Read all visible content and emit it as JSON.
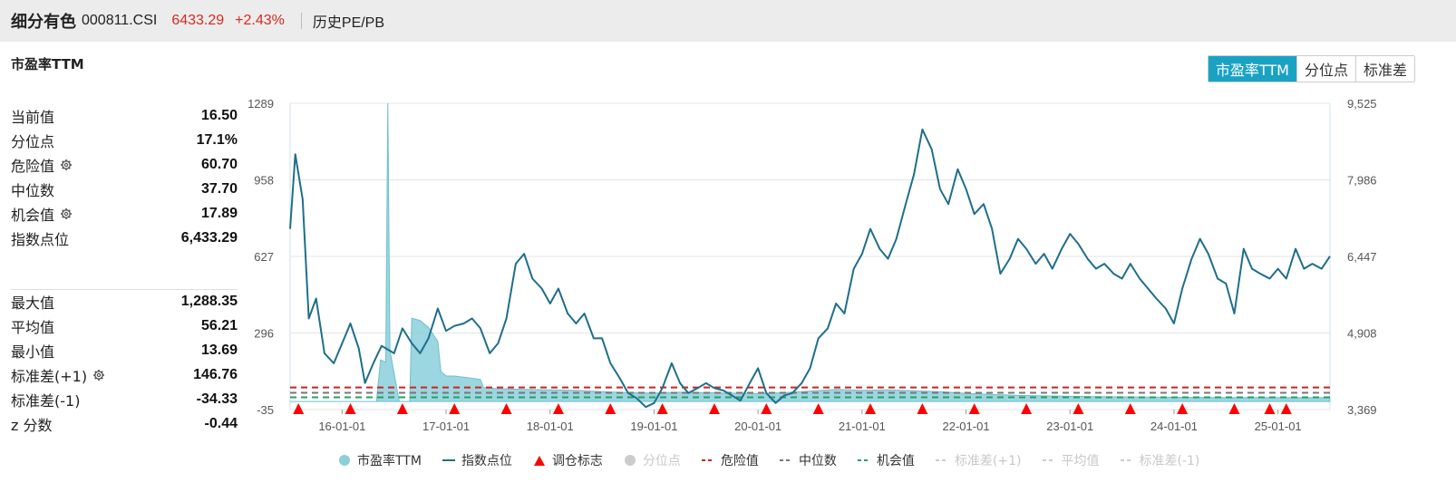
{
  "header": {
    "name": "细分有色",
    "code": "000811.CSI",
    "price": "6433.29",
    "change": "+2.43%",
    "link": "历史PE/PB"
  },
  "panel": {
    "title": "市盈率TTM",
    "stats_top": [
      {
        "label": "当前值",
        "value": "16.50",
        "gear": false
      },
      {
        "label": "分位点",
        "value": "17.1%",
        "gear": false
      },
      {
        "label": "危险值",
        "value": "60.70",
        "gear": true
      },
      {
        "label": "中位数",
        "value": "37.70",
        "gear": false
      },
      {
        "label": "机会值",
        "value": "17.89",
        "gear": true
      },
      {
        "label": "指数点位",
        "value": "6,433.29",
        "gear": false
      }
    ],
    "stats_bottom": [
      {
        "label": "最大值",
        "value": "1,288.35",
        "gear": false
      },
      {
        "label": "平均值",
        "value": "56.21",
        "gear": false
      },
      {
        "label": "最小值",
        "value": "13.69",
        "gear": false
      },
      {
        "label": "标准差(+1)",
        "value": "146.76",
        "gear": true
      },
      {
        "label": "标准差(-1)",
        "value": "-34.33",
        "gear": false
      },
      {
        "label": "z 分数",
        "value": "-0.44",
        "gear": false
      }
    ]
  },
  "tabs": [
    {
      "label": "市盈率TTM",
      "active": true
    },
    {
      "label": "分位点",
      "active": false
    },
    {
      "label": "标准差",
      "active": false
    }
  ],
  "legend": [
    {
      "label": "市盈率TTM",
      "type": "dot",
      "color": "#8bcfda",
      "dim": false
    },
    {
      "label": "指数点位",
      "type": "line",
      "color": "#1f6e8c",
      "dim": false
    },
    {
      "label": "调仓标志",
      "type": "triangle",
      "color": "#ff0000",
      "dim": false
    },
    {
      "label": "分位点",
      "type": "dot",
      "color": "#cccccc",
      "dim": true
    },
    {
      "label": "危险值",
      "type": "dash",
      "color": "#d22020",
      "dim": false
    },
    {
      "label": "中位数",
      "type": "dash",
      "color": "#777777",
      "dim": false
    },
    {
      "label": "机会值",
      "type": "dash",
      "color": "#22a064",
      "dim": false
    },
    {
      "label": "标准差(+1)",
      "type": "dash",
      "color": "#cccccc",
      "dim": true
    },
    {
      "label": "平均值",
      "type": "dash",
      "color": "#cccccc",
      "dim": true
    },
    {
      "label": "标准差(-1)",
      "type": "dash",
      "color": "#cccccc",
      "dim": true
    }
  ],
  "chart_data": {
    "type": "line",
    "x_ticks": [
      "16-01-01",
      "17-01-01",
      "18-01-01",
      "19-01-01",
      "20-01-01",
      "21-01-01",
      "22-01-01",
      "23-01-01",
      "24-01-01",
      "25-01-01"
    ],
    "y_left": {
      "ticks": [
        "1289",
        "958",
        "627",
        "296",
        "-35"
      ],
      "min": -35,
      "max": 1289
    },
    "y_right": {
      "ticks": [
        "9,525",
        "7,986",
        "6,447",
        "4,908",
        "3,369"
      ],
      "min": 3369,
      "max": 9525
    },
    "x_range": [
      2015.5,
      2025.5
    ],
    "reference_lines": {
      "danger": 60.7,
      "median": 37.7,
      "opportunity": 17.89
    },
    "series": [
      {
        "name": "指数点位",
        "points": [
          [
            2015.5,
            7000
          ],
          [
            2015.55,
            8500
          ],
          [
            2015.62,
            7600
          ],
          [
            2015.68,
            5200
          ],
          [
            2015.75,
            5600
          ],
          [
            2015.83,
            4500
          ],
          [
            2015.92,
            4300
          ],
          [
            2016.0,
            4700
          ],
          [
            2016.08,
            5100
          ],
          [
            2016.16,
            4600
          ],
          [
            2016.22,
            3900
          ],
          [
            2016.3,
            4300
          ],
          [
            2016.38,
            4650
          ],
          [
            2016.5,
            4500
          ],
          [
            2016.58,
            5000
          ],
          [
            2016.67,
            4700
          ],
          [
            2016.75,
            4500
          ],
          [
            2016.83,
            4800
          ],
          [
            2016.92,
            5400
          ],
          [
            2017.0,
            4950
          ],
          [
            2017.08,
            5050
          ],
          [
            2017.17,
            5100
          ],
          [
            2017.25,
            5200
          ],
          [
            2017.33,
            5000
          ],
          [
            2017.42,
            4500
          ],
          [
            2017.5,
            4700
          ],
          [
            2017.58,
            5200
          ],
          [
            2017.67,
            6300
          ],
          [
            2017.75,
            6500
          ],
          [
            2017.83,
            6000
          ],
          [
            2017.92,
            5800
          ],
          [
            2018.0,
            5500
          ],
          [
            2018.08,
            5800
          ],
          [
            2018.17,
            5300
          ],
          [
            2018.25,
            5100
          ],
          [
            2018.33,
            5300
          ],
          [
            2018.42,
            4800
          ],
          [
            2018.5,
            4800
          ],
          [
            2018.58,
            4300
          ],
          [
            2018.67,
            4000
          ],
          [
            2018.75,
            3700
          ],
          [
            2018.83,
            3600
          ],
          [
            2018.92,
            3420
          ],
          [
            2019.0,
            3500
          ],
          [
            2019.08,
            3800
          ],
          [
            2019.17,
            4300
          ],
          [
            2019.25,
            3900
          ],
          [
            2019.33,
            3700
          ],
          [
            2019.42,
            3800
          ],
          [
            2019.5,
            3900
          ],
          [
            2019.58,
            3800
          ],
          [
            2019.67,
            3750
          ],
          [
            2019.75,
            3650
          ],
          [
            2019.83,
            3550
          ],
          [
            2019.92,
            3900
          ],
          [
            2020.0,
            4200
          ],
          [
            2020.08,
            3700
          ],
          [
            2020.17,
            3500
          ],
          [
            2020.25,
            3650
          ],
          [
            2020.33,
            3700
          ],
          [
            2020.42,
            3900
          ],
          [
            2020.5,
            4200
          ],
          [
            2020.58,
            4800
          ],
          [
            2020.67,
            5000
          ],
          [
            2020.75,
            5500
          ],
          [
            2020.83,
            5300
          ],
          [
            2020.92,
            6200
          ],
          [
            2021.0,
            6500
          ],
          [
            2021.08,
            7000
          ],
          [
            2021.17,
            6600
          ],
          [
            2021.25,
            6400
          ],
          [
            2021.33,
            6800
          ],
          [
            2021.42,
            7500
          ],
          [
            2021.5,
            8100
          ],
          [
            2021.58,
            9000
          ],
          [
            2021.67,
            8600
          ],
          [
            2021.75,
            7800
          ],
          [
            2021.83,
            7500
          ],
          [
            2021.92,
            8200
          ],
          [
            2022.0,
            7800
          ],
          [
            2022.08,
            7300
          ],
          [
            2022.17,
            7500
          ],
          [
            2022.25,
            7000
          ],
          [
            2022.33,
            6100
          ],
          [
            2022.42,
            6400
          ],
          [
            2022.5,
            6800
          ],
          [
            2022.58,
            6600
          ],
          [
            2022.67,
            6300
          ],
          [
            2022.75,
            6500
          ],
          [
            2022.83,
            6200
          ],
          [
            2022.92,
            6600
          ],
          [
            2023.0,
            6900
          ],
          [
            2023.08,
            6700
          ],
          [
            2023.17,
            6400
          ],
          [
            2023.25,
            6200
          ],
          [
            2023.33,
            6300
          ],
          [
            2023.42,
            6100
          ],
          [
            2023.5,
            6000
          ],
          [
            2023.58,
            6300
          ],
          [
            2023.67,
            6000
          ],
          [
            2023.75,
            5800
          ],
          [
            2023.83,
            5600
          ],
          [
            2023.92,
            5400
          ],
          [
            2024.0,
            5100
          ],
          [
            2024.08,
            5800
          ],
          [
            2024.17,
            6400
          ],
          [
            2024.25,
            6800
          ],
          [
            2024.33,
            6500
          ],
          [
            2024.42,
            6000
          ],
          [
            2024.5,
            5900
          ],
          [
            2024.58,
            5300
          ],
          [
            2024.67,
            6600
          ],
          [
            2024.75,
            6200
          ],
          [
            2024.83,
            6100
          ],
          [
            2024.92,
            6000
          ],
          [
            2025.0,
            6200
          ],
          [
            2025.08,
            6000
          ],
          [
            2025.17,
            6600
          ],
          [
            2025.25,
            6200
          ],
          [
            2025.33,
            6300
          ],
          [
            2025.42,
            6200
          ],
          [
            2025.5,
            6450
          ]
        ]
      },
      {
        "name": "市盈率TTM",
        "points": [
          [
            2015.5,
            0
          ],
          [
            2016.33,
            0
          ],
          [
            2016.37,
            180
          ],
          [
            2016.42,
            170
          ],
          [
            2016.44,
            1289
          ],
          [
            2016.46,
            220
          ],
          [
            2016.55,
            0
          ],
          [
            2016.65,
            0
          ],
          [
            2016.67,
            360
          ],
          [
            2016.75,
            350
          ],
          [
            2016.83,
            320
          ],
          [
            2016.92,
            260
          ],
          [
            2016.95,
            130
          ],
          [
            2017.0,
            110
          ],
          [
            2017.08,
            110
          ],
          [
            2017.17,
            105
          ],
          [
            2017.25,
            100
          ],
          [
            2017.33,
            95
          ],
          [
            2017.36,
            60
          ],
          [
            2017.5,
            55
          ],
          [
            2017.75,
            52
          ],
          [
            2018.0,
            50
          ],
          [
            2018.25,
            48
          ],
          [
            2018.5,
            42
          ],
          [
            2018.75,
            38
          ],
          [
            2019.0,
            36
          ],
          [
            2019.25,
            40
          ],
          [
            2019.5,
            38
          ],
          [
            2019.75,
            36
          ],
          [
            2020.0,
            34
          ],
          [
            2020.25,
            38
          ],
          [
            2020.5,
            45
          ],
          [
            2020.75,
            52
          ],
          [
            2021.0,
            48
          ],
          [
            2021.25,
            50
          ],
          [
            2021.5,
            46
          ],
          [
            2021.75,
            42
          ],
          [
            2022.0,
            35
          ],
          [
            2022.25,
            30
          ],
          [
            2022.5,
            26
          ],
          [
            2022.75,
            24
          ],
          [
            2023.0,
            22
          ],
          [
            2023.25,
            21
          ],
          [
            2023.5,
            20
          ],
          [
            2023.75,
            19
          ],
          [
            2024.0,
            18
          ],
          [
            2024.25,
            17.5
          ],
          [
            2024.5,
            17
          ],
          [
            2024.75,
            16.8
          ],
          [
            2025.0,
            16.6
          ],
          [
            2025.5,
            16.5
          ]
        ]
      },
      {
        "name": "调仓标志",
        "x": [
          2015.58,
          2016.08,
          2016.58,
          2017.08,
          2017.58,
          2018.08,
          2018.58,
          2019.08,
          2019.58,
          2020.08,
          2020.58,
          2021.08,
          2021.58,
          2022.08,
          2022.58,
          2023.08,
          2023.58,
          2024.08,
          2024.58,
          2024.92,
          2025.08
        ]
      }
    ]
  }
}
